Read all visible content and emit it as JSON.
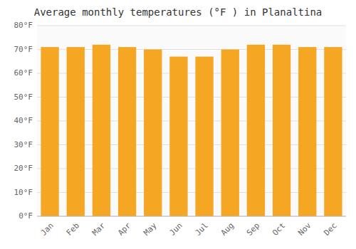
{
  "chart_data": {
    "type": "bar",
    "title": "Average monthly temperatures (°F ) in Planaltina",
    "categories": [
      "Jan",
      "Feb",
      "Mar",
      "Apr",
      "May",
      "Jun",
      "Jul",
      "Aug",
      "Sep",
      "Oct",
      "Nov",
      "Dec"
    ],
    "values": [
      71,
      71,
      72,
      71,
      70,
      67,
      67,
      70,
      72,
      72,
      71,
      71
    ],
    "color": "#F5A623",
    "ylim": [
      0,
      80
    ],
    "yticks": [
      {
        "value": 0,
        "label": "0°F"
      },
      {
        "value": 10,
        "label": "10°F"
      },
      {
        "value": 20,
        "label": "20°F"
      },
      {
        "value": 30,
        "label": "30°F"
      },
      {
        "value": 40,
        "label": "40°F"
      },
      {
        "value": 50,
        "label": "50°F"
      },
      {
        "value": 60,
        "label": "60°F"
      },
      {
        "value": 70,
        "label": "70°F"
      },
      {
        "value": 80,
        "label": "80°F"
      }
    ],
    "grid": true
  }
}
